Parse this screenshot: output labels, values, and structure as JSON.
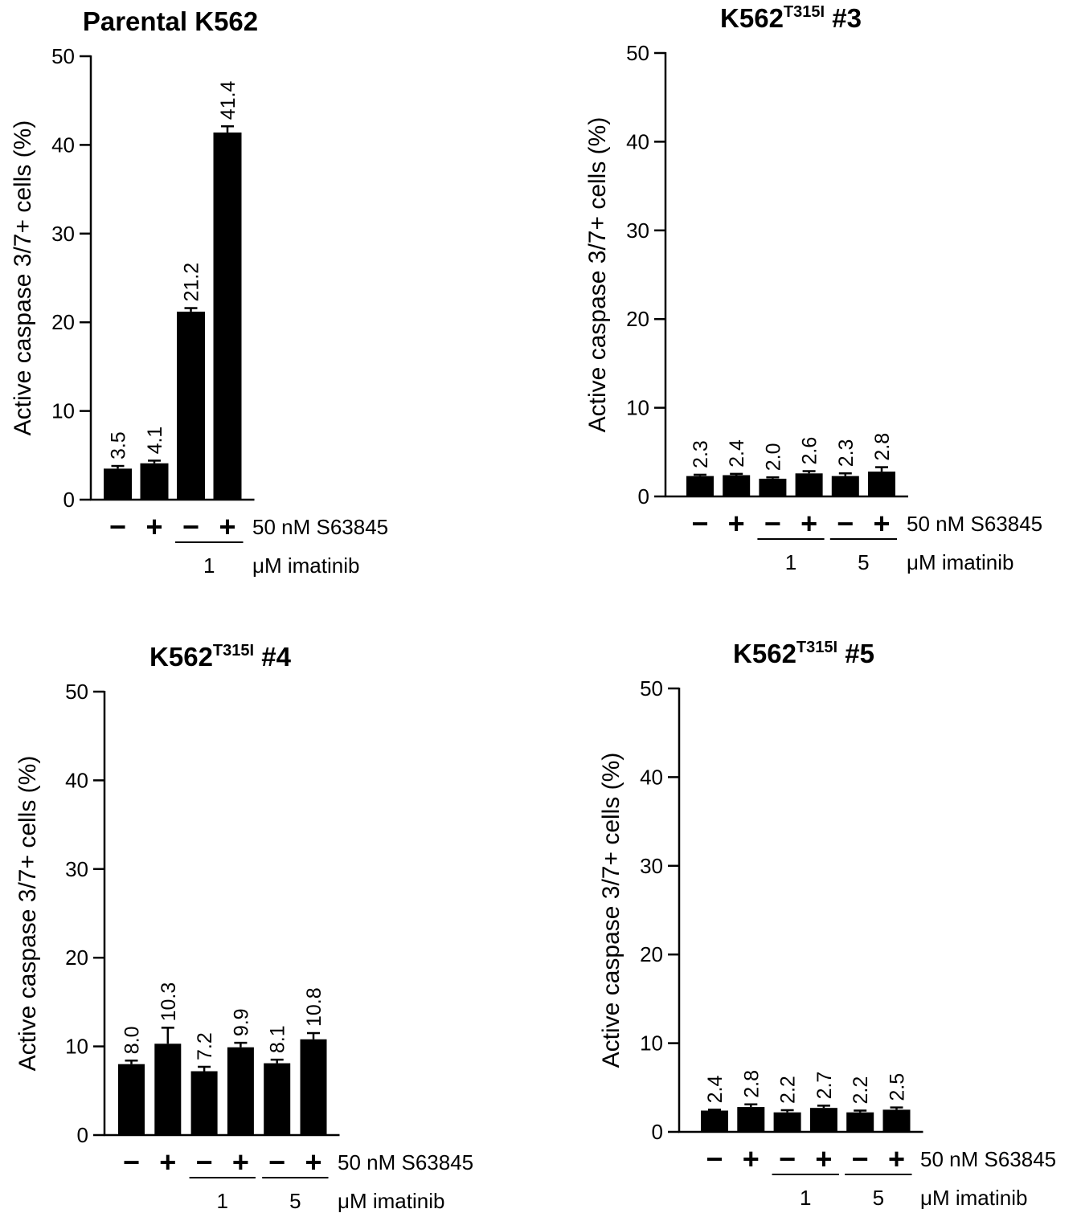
{
  "chart_data": [
    {
      "type": "bar",
      "title": "Parental K562",
      "title_base": "Parental K562",
      "title_sup": "",
      "title_suffix": "",
      "ylabel": "Active caspase 3/7+ cells (%)",
      "ylim": [
        0,
        50
      ],
      "yticks": [
        0,
        10,
        20,
        30,
        40,
        50
      ],
      "ytick_labels": [
        "0",
        "10",
        "20",
        "30",
        "40",
        "50"
      ],
      "categories": [
        "−",
        "+",
        "−",
        "+"
      ],
      "values": [
        3.5,
        4.1,
        21.2,
        41.4
      ],
      "errors": [
        0.3,
        0.3,
        0.4,
        0.7
      ],
      "value_labels": [
        "3.5",
        "4.1",
        "21.2",
        "41.4"
      ],
      "bar_color": "#000000",
      "row1_label": "50 nM S63845",
      "row2_label": "μM imatinib",
      "groups": [
        {
          "label": "1",
          "start": 2,
          "end": 3
        }
      ]
    },
    {
      "type": "bar",
      "title": "K562T315I #3",
      "title_base": "K562",
      "title_sup": "T315I",
      "title_suffix": " #3",
      "ylabel": "Active caspase 3/7+ cells (%)",
      "ylim": [
        0,
        50
      ],
      "yticks": [
        0,
        10,
        20,
        30,
        40,
        50
      ],
      "ytick_labels": [
        "0",
        "10",
        "20",
        "30",
        "40",
        "50"
      ],
      "categories": [
        "−",
        "+",
        "−",
        "+",
        "−",
        "+"
      ],
      "values": [
        2.3,
        2.4,
        2.0,
        2.6,
        2.3,
        2.8
      ],
      "errors": [
        0.15,
        0.15,
        0.15,
        0.25,
        0.3,
        0.5
      ],
      "value_labels": [
        "2.3",
        "2.4",
        "2.0",
        "2.6",
        "2.3",
        "2.8"
      ],
      "bar_color": "#000000",
      "row1_label": "50 nM S63845",
      "row2_label": "μM imatinib",
      "groups": [
        {
          "label": "1",
          "start": 2,
          "end": 3
        },
        {
          "label": "5",
          "start": 4,
          "end": 5
        }
      ]
    },
    {
      "type": "bar",
      "title": "K562T315I #4",
      "title_base": "K562",
      "title_sup": "T315I",
      "title_suffix": " #4",
      "ylabel": "Active caspase 3/7+ cells (%)",
      "ylim": [
        0,
        50
      ],
      "yticks": [
        0,
        10,
        20,
        30,
        40,
        50
      ],
      "ytick_labels": [
        "0",
        "10",
        "20",
        "30",
        "40",
        "50"
      ],
      "categories": [
        "−",
        "+",
        "−",
        "+",
        "−",
        "+"
      ],
      "values": [
        8.0,
        10.3,
        7.2,
        9.9,
        8.1,
        10.8
      ],
      "errors": [
        0.4,
        1.8,
        0.5,
        0.5,
        0.4,
        0.7
      ],
      "value_labels": [
        "8.0",
        "10.3",
        "7.2",
        "9.9",
        "8.1",
        "10.8"
      ],
      "bar_color": "#000000",
      "row1_label": "50 nM S63845",
      "row2_label": "μM imatinib",
      "groups": [
        {
          "label": "1",
          "start": 2,
          "end": 3
        },
        {
          "label": "5",
          "start": 4,
          "end": 5
        }
      ]
    },
    {
      "type": "bar",
      "title": "K562T315I #5",
      "title_base": "K562",
      "title_sup": "T315I",
      "title_suffix": " #5",
      "ylabel": "Active caspase 3/7+ cells (%)",
      "ylim": [
        0,
        50
      ],
      "yticks": [
        0,
        10,
        20,
        30,
        40,
        50
      ],
      "ytick_labels": [
        "0",
        "10",
        "20",
        "30",
        "40",
        "50"
      ],
      "categories": [
        "−",
        "+",
        "−",
        "+",
        "−",
        "+"
      ],
      "values": [
        2.4,
        2.8,
        2.2,
        2.7,
        2.2,
        2.5
      ],
      "errors": [
        0.1,
        0.3,
        0.25,
        0.25,
        0.2,
        0.25
      ],
      "value_labels": [
        "2.4",
        "2.8",
        "2.2",
        "2.7",
        "2.2",
        "2.5"
      ],
      "bar_color": "#000000",
      "row1_label": "50 nM S63845",
      "row2_label": "μM imatinib",
      "groups": [
        {
          "label": "1",
          "start": 2,
          "end": 3
        },
        {
          "label": "5",
          "start": 4,
          "end": 5
        }
      ]
    }
  ]
}
